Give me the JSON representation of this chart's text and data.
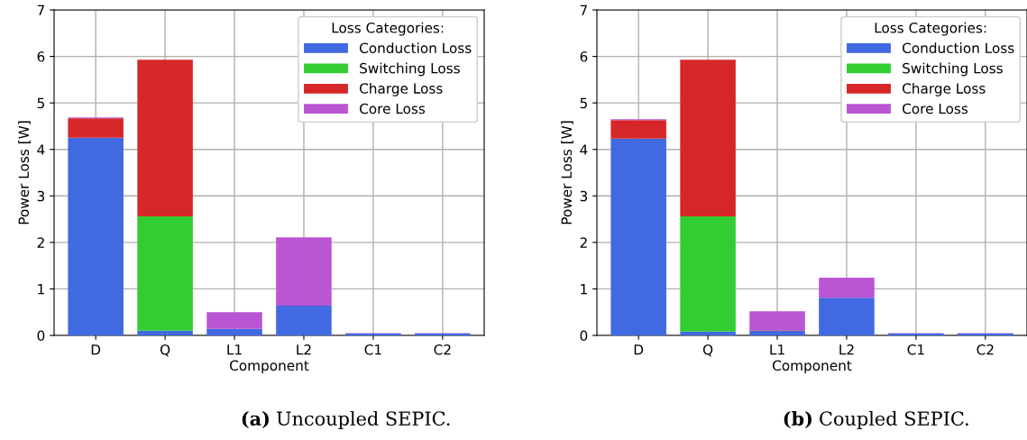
{
  "chart_data": [
    {
      "type": "bar",
      "stacked": true,
      "xlabel": "Component",
      "ylabel": "Power Loss [W]",
      "legend_title": "Loss Categories:",
      "legend": "top right",
      "grid": true,
      "categories": [
        "D",
        "Q",
        "L1",
        "L2",
        "C1",
        "C2"
      ],
      "ylim": [
        0,
        7
      ],
      "yticks": [
        0,
        1,
        2,
        3,
        4,
        5,
        6,
        7
      ],
      "series": [
        {
          "name": "Conduction Loss",
          "color": "#4169e1",
          "values": [
            4.25,
            0.1,
            0.14,
            0.64,
            0.04,
            0.04
          ]
        },
        {
          "name": "Switching Loss",
          "color": "#32cd32",
          "values": [
            0,
            2.46,
            0,
            0,
            0,
            0
          ]
        },
        {
          "name": "Charge Loss",
          "color": "#d62728",
          "values": [
            0.42,
            3.37,
            0,
            0,
            0,
            0
          ]
        },
        {
          "name": "Core Loss",
          "color": "#ba55d3",
          "values": [
            0.02,
            0,
            0.36,
            1.47,
            0.01,
            0.01
          ]
        }
      ],
      "annotations": [
        "(a)",
        "Uncoupled SEPIC."
      ]
    },
    {
      "type": "bar",
      "stacked": true,
      "xlabel": "Component",
      "ylabel": "Power Loss [W]",
      "legend_title": "Loss Categories:",
      "legend": "top right",
      "grid": true,
      "categories": [
        "D",
        "Q",
        "L1",
        "L2",
        "C1",
        "C2"
      ],
      "ylim": [
        0,
        7
      ],
      "yticks": [
        0,
        1,
        2,
        3,
        4,
        5,
        6,
        7
      ],
      "series": [
        {
          "name": "Conduction Loss",
          "color": "#4169e1",
          "values": [
            4.23,
            0.08,
            0.1,
            0.81,
            0.04,
            0.04
          ]
        },
        {
          "name": "Switching Loss",
          "color": "#32cd32",
          "values": [
            0,
            2.48,
            0,
            0,
            0,
            0
          ]
        },
        {
          "name": "Charge Loss",
          "color": "#d62728",
          "values": [
            0.4,
            3.37,
            0.01,
            0,
            0,
            0
          ]
        },
        {
          "name": "Core Loss",
          "color": "#ba55d3",
          "values": [
            0.02,
            0,
            0.41,
            0.43,
            0.01,
            0.01
          ]
        }
      ],
      "annotations": [
        "(b)",
        "Coupled SEPIC."
      ]
    }
  ]
}
